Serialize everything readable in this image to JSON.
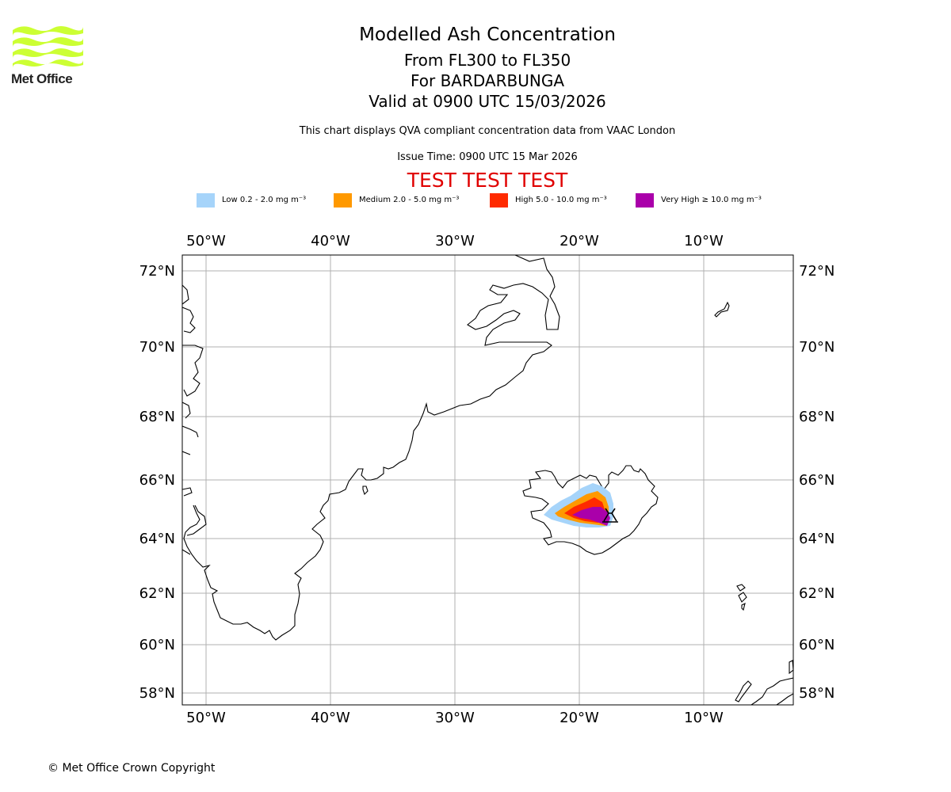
{
  "logo": {
    "text": "Met Office",
    "color": "#ccff33"
  },
  "header": {
    "title": "Modelled Ash Concentration",
    "level_range": "From FL300 to FL350",
    "volcano": "For BARDARBUNGA",
    "valid": "Valid at 0900 UTC 15/03/2026",
    "subtitle": "This chart displays QVA compliant concentration data from VAAC London",
    "issue_time": "Issue Time: 0900 UTC 15 Mar 2026",
    "test_banner": "TEST TEST TEST"
  },
  "legend": [
    {
      "label": "Low 0.2 - 2.0 mg m⁻³",
      "color": "#a6d4fa"
    },
    {
      "label": "Medium 2.0 - 5.0 mg m⁻³",
      "color": "#ff9900"
    },
    {
      "label": "High 5.0 - 10.0 mg m⁻³",
      "color": "#ff2a00"
    },
    {
      "label": "Very High ≥ 10.0 mg m⁻³",
      "color": "#aa00aa"
    }
  ],
  "map": {
    "lon_labels": [
      "50°W",
      "40°W",
      "30°W",
      "20°W",
      "10°W"
    ],
    "lat_labels": [
      "72°N",
      "70°N",
      "68°N",
      "66°N",
      "64°N",
      "62°N",
      "60°N",
      "58°N"
    ],
    "gridline_color": "#b0b0b0",
    "volcano_marker": "volcano-icon"
  },
  "footer": {
    "copyright": "© Met Office Crown Copyright"
  }
}
